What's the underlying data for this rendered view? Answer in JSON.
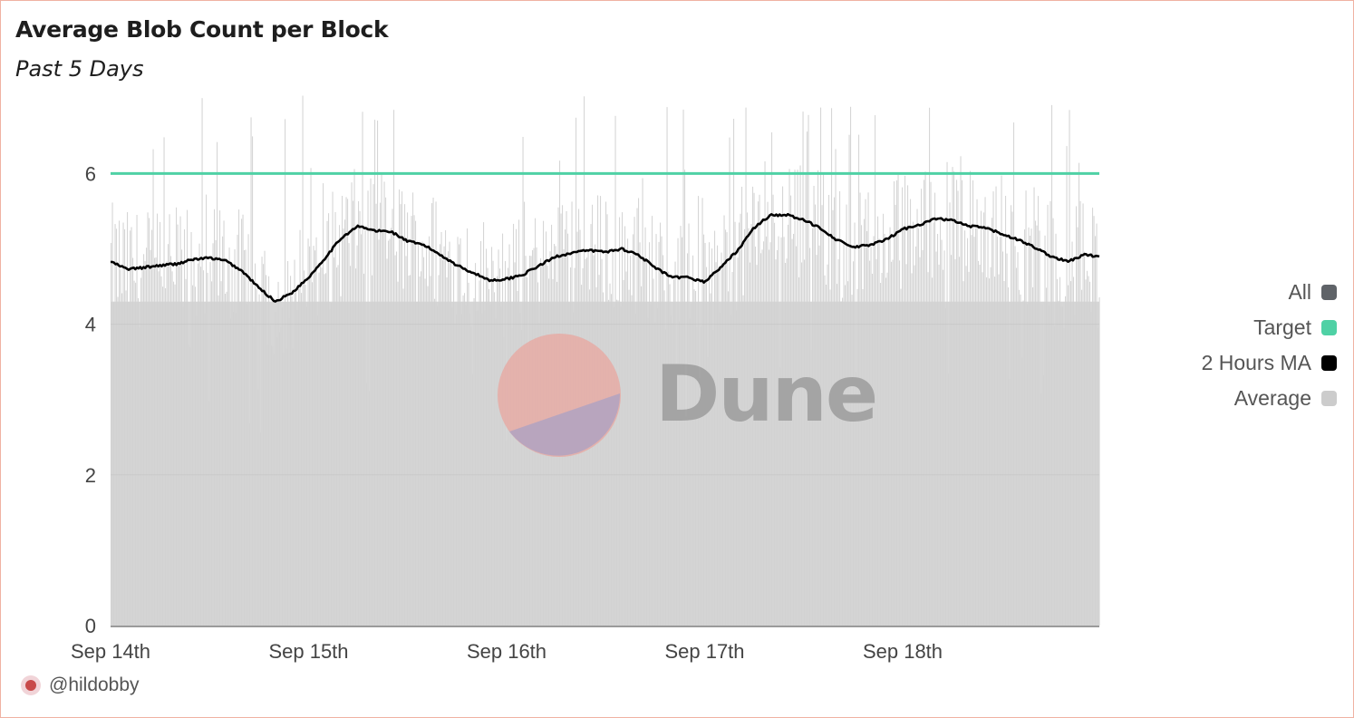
{
  "header": {
    "title": "Average Blob Count per Block",
    "subtitle": "Past 5 Days"
  },
  "author": {
    "handle": "@hildobby",
    "avatar_icon": "avatar-icon"
  },
  "watermark": {
    "text": "Dune"
  },
  "legend": {
    "items": [
      {
        "label": "All",
        "color": "#5f6368"
      },
      {
        "label": "Target",
        "color": "#4fd1a5"
      },
      {
        "label": "2 Hours MA",
        "color": "#000000"
      },
      {
        "label": "Average",
        "color": "#cccccc"
      }
    ]
  },
  "chart_data": {
    "type": "bar",
    "title": "Average Blob Count per Block",
    "subtitle": "Past 5 Days",
    "xlabel": "",
    "ylabel": "",
    "ylim": [
      0,
      7.1
    ],
    "yticks": [
      0,
      2,
      4,
      6
    ],
    "x_range": [
      "2024-09-14",
      "2024-09-18T23:59"
    ],
    "xtick_labels": [
      "Sep 14th",
      "Sep 15th",
      "Sep 16th",
      "Sep 17th",
      "Sep 18th"
    ],
    "grid": true,
    "legend_position": "right",
    "series": [
      {
        "name": "Target",
        "type": "line",
        "color": "#4fd1a5",
        "x": [
          "2024-09-14",
          "2024-09-18T23:59"
        ],
        "values": [
          6,
          6
        ]
      },
      {
        "name": "2 Hours MA",
        "type": "line",
        "color": "#000000",
        "x": [
          "2024-09-14T00:00",
          "2024-09-14T02:00",
          "2024-09-14T04:00",
          "2024-09-14T06:00",
          "2024-09-14T08:00",
          "2024-09-14T10:00",
          "2024-09-14T12:00",
          "2024-09-14T14:00",
          "2024-09-14T16:00",
          "2024-09-14T18:00",
          "2024-09-14T20:00",
          "2024-09-14T22:00",
          "2024-09-15T00:00",
          "2024-09-15T02:00",
          "2024-09-15T04:00",
          "2024-09-15T06:00",
          "2024-09-15T08:00",
          "2024-09-15T10:00",
          "2024-09-15T12:00",
          "2024-09-15T14:00",
          "2024-09-15T16:00",
          "2024-09-15T18:00",
          "2024-09-15T20:00",
          "2024-09-15T22:00",
          "2024-09-16T00:00",
          "2024-09-16T02:00",
          "2024-09-16T04:00",
          "2024-09-16T06:00",
          "2024-09-16T08:00",
          "2024-09-16T10:00",
          "2024-09-16T12:00",
          "2024-09-16T14:00",
          "2024-09-16T16:00",
          "2024-09-16T18:00",
          "2024-09-16T20:00",
          "2024-09-16T22:00",
          "2024-09-17T00:00",
          "2024-09-17T02:00",
          "2024-09-17T04:00",
          "2024-09-17T06:00",
          "2024-09-17T08:00",
          "2024-09-17T10:00",
          "2024-09-17T12:00",
          "2024-09-17T14:00",
          "2024-09-17T16:00",
          "2024-09-17T18:00",
          "2024-09-17T20:00",
          "2024-09-17T22:00",
          "2024-09-18T00:00",
          "2024-09-18T02:00",
          "2024-09-18T04:00",
          "2024-09-18T06:00",
          "2024-09-18T08:00",
          "2024-09-18T10:00",
          "2024-09-18T12:00",
          "2024-09-18T14:00",
          "2024-09-18T16:00",
          "2024-09-18T18:00",
          "2024-09-18T20:00",
          "2024-09-18T22:00",
          "2024-09-18T23:59"
        ],
        "values": [
          4.83,
          4.73,
          4.75,
          4.78,
          4.8,
          4.86,
          4.88,
          4.84,
          4.7,
          4.48,
          4.3,
          4.42,
          4.62,
          4.88,
          5.15,
          5.3,
          5.24,
          5.23,
          5.1,
          5.05,
          4.92,
          4.78,
          4.68,
          4.58,
          4.6,
          4.66,
          4.78,
          4.9,
          4.95,
          4.98,
          4.96,
          5.0,
          4.92,
          4.75,
          4.62,
          4.62,
          4.56,
          4.76,
          4.98,
          5.28,
          5.45,
          5.45,
          5.38,
          5.28,
          5.12,
          5.02,
          5.05,
          5.12,
          5.26,
          5.32,
          5.4,
          5.38,
          5.3,
          5.28,
          5.2,
          5.12,
          5.02,
          4.9,
          4.83,
          4.92,
          4.9
        ]
      },
      {
        "name": "Average",
        "type": "bar",
        "color": "#cccccc",
        "note_values": "dense per-block bars, ~4.2 to 7.1 range",
        "x_span": [
          "2024-09-14",
          "2024-09-18T23:59"
        ],
        "typical_low": 4.0,
        "typical_high": 6.0,
        "max": 7.1
      }
    ]
  }
}
